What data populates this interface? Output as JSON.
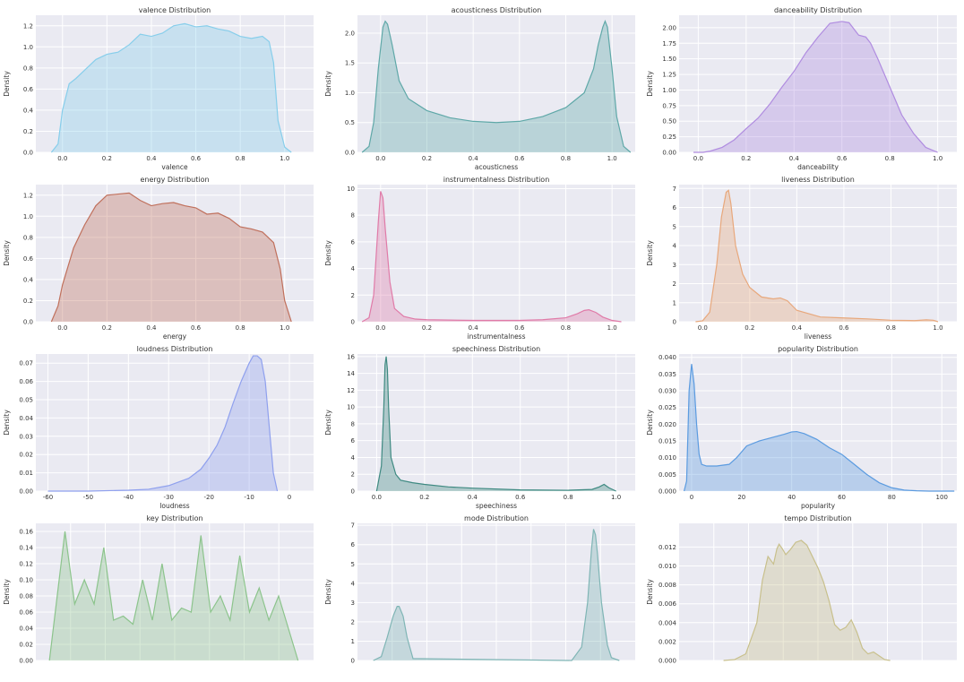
{
  "chart_data": [
    {
      "type": "area",
      "title": "valence Distribution",
      "xlabel": "valence",
      "ylabel": "Density",
      "xlim": [
        -0.12,
        1.13
      ],
      "ylim": [
        0,
        1.3
      ],
      "xticks": [
        0.0,
        0.2,
        0.4,
        0.6,
        0.8,
        1.0
      ],
      "yticks": [
        0.0,
        0.2,
        0.4,
        0.6,
        0.8,
        1.0,
        1.2
      ],
      "color": "#87CEEB",
      "grid": true,
      "x": [
        -0.05,
        -0.02,
        0.0,
        0.03,
        0.06,
        0.1,
        0.15,
        0.2,
        0.25,
        0.3,
        0.35,
        0.4,
        0.45,
        0.5,
        0.55,
        0.6,
        0.65,
        0.7,
        0.75,
        0.8,
        0.85,
        0.9,
        0.93,
        0.95,
        0.97,
        1.0,
        1.03
      ],
      "y": [
        0.0,
        0.08,
        0.4,
        0.65,
        0.7,
        0.78,
        0.88,
        0.93,
        0.95,
        1.02,
        1.12,
        1.1,
        1.13,
        1.2,
        1.22,
        1.19,
        1.2,
        1.17,
        1.15,
        1.1,
        1.08,
        1.1,
        1.05,
        0.85,
        0.3,
        0.05,
        0.0
      ]
    },
    {
      "type": "area",
      "title": "acousticness Distribution",
      "xlabel": "acousticness",
      "ylabel": "Density",
      "xlim": [
        -0.1,
        1.1
      ],
      "ylim": [
        0,
        2.3
      ],
      "xticks": [
        0.0,
        0.2,
        0.4,
        0.6,
        0.8,
        1.0
      ],
      "yticks": [
        0.0,
        0.5,
        1.0,
        1.5,
        2.0
      ],
      "color": "#5FA8A8",
      "grid": true,
      "x": [
        -0.08,
        -0.05,
        -0.03,
        -0.01,
        0.01,
        0.02,
        0.03,
        0.05,
        0.08,
        0.12,
        0.2,
        0.3,
        0.4,
        0.5,
        0.6,
        0.7,
        0.8,
        0.88,
        0.92,
        0.94,
        0.96,
        0.97,
        0.98,
        1.0,
        1.02,
        1.05,
        1.08
      ],
      "y": [
        0.0,
        0.1,
        0.5,
        1.4,
        2.1,
        2.2,
        2.15,
        1.8,
        1.2,
        0.9,
        0.7,
        0.58,
        0.52,
        0.5,
        0.52,
        0.6,
        0.75,
        1.0,
        1.4,
        1.8,
        2.1,
        2.2,
        2.1,
        1.4,
        0.6,
        0.1,
        0.0
      ]
    },
    {
      "type": "area",
      "title": "danceability Distribution",
      "xlabel": "danceability",
      "ylabel": "Density",
      "xlim": [
        -0.08,
        1.08
      ],
      "ylim": [
        0,
        2.2
      ],
      "xticks": [
        0.0,
        0.2,
        0.4,
        0.6,
        0.8,
        1.0
      ],
      "yticks": [
        0.0,
        0.25,
        0.5,
        0.75,
        1.0,
        1.25,
        1.5,
        1.75,
        2.0
      ],
      "color": "#B08CE0",
      "grid": true,
      "x": [
        -0.02,
        0.02,
        0.05,
        0.1,
        0.15,
        0.2,
        0.25,
        0.3,
        0.35,
        0.4,
        0.45,
        0.5,
        0.55,
        0.6,
        0.63,
        0.67,
        0.7,
        0.72,
        0.75,
        0.8,
        0.85,
        0.9,
        0.95,
        1.0
      ],
      "y": [
        0.0,
        0.0,
        0.02,
        0.08,
        0.2,
        0.38,
        0.55,
        0.78,
        1.05,
        1.3,
        1.6,
        1.85,
        2.07,
        2.1,
        2.08,
        1.88,
        1.85,
        1.75,
        1.5,
        1.05,
        0.6,
        0.3,
        0.08,
        0.0
      ]
    },
    {
      "type": "area",
      "title": "energy Distribution",
      "xlabel": "energy",
      "ylabel": "Density",
      "xlim": [
        -0.12,
        1.13
      ],
      "ylim": [
        0,
        1.3
      ],
      "xticks": [
        0.0,
        0.2,
        0.4,
        0.6,
        0.8,
        1.0
      ],
      "yticks": [
        0.0,
        0.2,
        0.4,
        0.6,
        0.8,
        1.0,
        1.2
      ],
      "color": "#C0705C",
      "grid": true,
      "x": [
        -0.05,
        -0.02,
        0.0,
        0.05,
        0.1,
        0.15,
        0.2,
        0.25,
        0.3,
        0.35,
        0.4,
        0.45,
        0.5,
        0.55,
        0.6,
        0.65,
        0.7,
        0.75,
        0.8,
        0.85,
        0.9,
        0.95,
        0.98,
        1.0,
        1.03
      ],
      "y": [
        0.0,
        0.15,
        0.35,
        0.7,
        0.92,
        1.1,
        1.2,
        1.21,
        1.22,
        1.15,
        1.1,
        1.12,
        1.13,
        1.1,
        1.08,
        1.02,
        1.03,
        0.98,
        0.9,
        0.88,
        0.85,
        0.75,
        0.5,
        0.2,
        0.0
      ]
    },
    {
      "type": "area",
      "title": "instrumentalness Distribution",
      "xlabel": "instrumentalness",
      "ylabel": "Density",
      "xlim": [
        -0.1,
        1.1
      ],
      "ylim": [
        0,
        10.3
      ],
      "xticks": [
        0.0,
        0.2,
        0.4,
        0.6,
        0.8,
        1.0
      ],
      "yticks": [
        0,
        2,
        4,
        6,
        8,
        10
      ],
      "color": "#E07BA8",
      "grid": true,
      "x": [
        -0.08,
        -0.05,
        -0.03,
        -0.01,
        0.0,
        0.01,
        0.02,
        0.04,
        0.06,
        0.1,
        0.15,
        0.2,
        0.4,
        0.6,
        0.7,
        0.8,
        0.85,
        0.88,
        0.9,
        0.93,
        0.96,
        1.0,
        1.04
      ],
      "y": [
        0.0,
        0.3,
        2.0,
        7.5,
        9.8,
        9.3,
        7.0,
        3.0,
        1.0,
        0.4,
        0.2,
        0.15,
        0.1,
        0.1,
        0.15,
        0.3,
        0.6,
        0.85,
        0.9,
        0.7,
        0.35,
        0.1,
        0.0
      ]
    },
    {
      "type": "area",
      "title": "liveness Distribution",
      "xlabel": "liveness",
      "ylabel": "Density",
      "xlim": [
        -0.1,
        1.08
      ],
      "ylim": [
        0,
        7.2
      ],
      "xticks": [
        0.0,
        0.2,
        0.4,
        0.6,
        0.8,
        1.0
      ],
      "yticks": [
        0,
        1,
        2,
        3,
        4,
        5,
        6,
        7
      ],
      "color": "#E8A87C",
      "grid": true,
      "x": [
        -0.03,
        0.0,
        0.03,
        0.06,
        0.08,
        0.1,
        0.11,
        0.12,
        0.14,
        0.17,
        0.2,
        0.25,
        0.3,
        0.33,
        0.36,
        0.4,
        0.5,
        0.6,
        0.7,
        0.8,
        0.9,
        0.95,
        0.98,
        1.0
      ],
      "y": [
        0.0,
        0.05,
        0.5,
        3.0,
        5.5,
        6.8,
        6.9,
        6.2,
        4.0,
        2.5,
        1.8,
        1.3,
        1.2,
        1.25,
        1.1,
        0.6,
        0.25,
        0.2,
        0.15,
        0.08,
        0.06,
        0.1,
        0.08,
        0.0
      ]
    },
    {
      "type": "area",
      "title": "loudness Distribution",
      "xlabel": "loudness",
      "ylabel": "Density",
      "xlim": [
        -63,
        6
      ],
      "ylim": [
        0,
        0.075
      ],
      "xticks": [
        -60,
        -50,
        -40,
        -30,
        -20,
        -10,
        0
      ],
      "yticks": [
        0.0,
        0.01,
        0.02,
        0.03,
        0.04,
        0.05,
        0.06,
        0.07
      ],
      "color": "#8FA0EE",
      "grid": true,
      "x": [
        -60,
        -50,
        -40,
        -35,
        -30,
        -25,
        -22,
        -20,
        -18,
        -16,
        -14,
        -12,
        -11,
        -10,
        -9,
        -8,
        -7,
        -6,
        -5,
        -4,
        -3
      ],
      "y": [
        0.0,
        0.0,
        0.0005,
        0.001,
        0.003,
        0.007,
        0.012,
        0.018,
        0.025,
        0.035,
        0.048,
        0.06,
        0.065,
        0.07,
        0.074,
        0.074,
        0.072,
        0.06,
        0.035,
        0.01,
        0.0
      ]
    },
    {
      "type": "area",
      "title": "speechiness Distribution",
      "xlabel": "speechiness",
      "ylabel": "Density",
      "xlim": [
        -0.08,
        1.08
      ],
      "ylim": [
        0,
        16.3
      ],
      "xticks": [
        0.0,
        0.2,
        0.4,
        0.6,
        0.8,
        1.0
      ],
      "yticks": [
        0,
        2,
        4,
        6,
        8,
        10,
        12,
        14,
        16
      ],
      "color": "#3F8A82",
      "grid": true,
      "x": [
        0.0,
        0.02,
        0.03,
        0.035,
        0.04,
        0.045,
        0.05,
        0.06,
        0.08,
        0.1,
        0.15,
        0.2,
        0.3,
        0.4,
        0.6,
        0.8,
        0.9,
        0.93,
        0.95,
        0.97,
        1.0
      ],
      "y": [
        0.0,
        3.0,
        10.0,
        15.0,
        16.0,
        14.5,
        10.0,
        4.0,
        2.0,
        1.3,
        1.0,
        0.8,
        0.5,
        0.35,
        0.15,
        0.1,
        0.2,
        0.5,
        0.8,
        0.4,
        0.0
      ]
    },
    {
      "type": "area",
      "title": "popularity Distribution",
      "xlabel": "popularity",
      "ylabel": "Density",
      "xlim": [
        -5,
        106
      ],
      "ylim": [
        0,
        0.041
      ],
      "xticks": [
        0,
        20,
        40,
        60,
        80,
        100
      ],
      "yticks": [
        0.0,
        0.005,
        0.01,
        0.015,
        0.02,
        0.025,
        0.03,
        0.035,
        0.04
      ],
      "color": "#5B9BE0",
      "grid": true,
      "x": [
        -3,
        -2,
        -1,
        0,
        1,
        2,
        3,
        4,
        6,
        10,
        15,
        18,
        22,
        27,
        32,
        37,
        40,
        42,
        45,
        50,
        55,
        60,
        65,
        70,
        75,
        80,
        85,
        90,
        95,
        100,
        105
      ],
      "y": [
        0.0,
        0.003,
        0.03,
        0.038,
        0.032,
        0.02,
        0.011,
        0.008,
        0.0075,
        0.0075,
        0.008,
        0.01,
        0.0135,
        0.015,
        0.016,
        0.017,
        0.0177,
        0.0178,
        0.0172,
        0.0155,
        0.013,
        0.011,
        0.008,
        0.005,
        0.0025,
        0.001,
        0.0003,
        0.0001,
        0.0,
        0.0,
        0.0
      ]
    },
    {
      "type": "area",
      "title": "key Distribution",
      "xlabel": "",
      "ylabel": "Density",
      "xlim": [
        -1.5,
        12.8
      ],
      "ylim": [
        0,
        0.17
      ],
      "xticks": [],
      "yticks": [
        0.0,
        0.02,
        0.04,
        0.06,
        0.08,
        0.1,
        0.12,
        0.14,
        0.16
      ],
      "color": "#8CC48C",
      "grid": true,
      "x": [
        -0.8,
        -0.5,
        0.0,
        0.5,
        1.0,
        1.5,
        2.0,
        2.5,
        3.0,
        3.5,
        4.0,
        4.5,
        5.0,
        5.5,
        6.0,
        6.5,
        7.0,
        7.5,
        8.0,
        8.5,
        9.0,
        9.5,
        10.0,
        10.5,
        11.0,
        11.5,
        12.0
      ],
      "y": [
        0.0,
        0.06,
        0.16,
        0.07,
        0.1,
        0.07,
        0.14,
        0.05,
        0.055,
        0.045,
        0.1,
        0.05,
        0.12,
        0.05,
        0.065,
        0.06,
        0.155,
        0.06,
        0.08,
        0.05,
        0.13,
        0.06,
        0.09,
        0.05,
        0.08,
        0.04,
        0.0
      ]
    },
    {
      "type": "area",
      "title": "mode Distribution",
      "xlabel": "",
      "ylabel": "Density",
      "xlim": [
        -0.18,
        1.22
      ],
      "ylim": [
        0,
        7.1
      ],
      "xticks": [],
      "yticks": [
        0,
        1,
        2,
        3,
        4,
        5,
        6,
        7
      ],
      "color": "#7FB5B5",
      "grid": true,
      "x": [
        -0.1,
        -0.06,
        -0.03,
        0.0,
        0.02,
        0.03,
        0.05,
        0.07,
        0.1,
        0.9,
        0.95,
        0.98,
        1.0,
        1.01,
        1.02,
        1.03,
        1.05,
        1.08,
        1.1,
        1.14
      ],
      "y": [
        0.0,
        0.2,
        1.2,
        2.3,
        2.8,
        2.8,
        2.3,
        1.2,
        0.1,
        0.0,
        0.7,
        3.0,
        5.8,
        6.8,
        6.5,
        5.5,
        3.0,
        0.8,
        0.15,
        0.0
      ]
    },
    {
      "type": "area",
      "title": "tempo Distribution",
      "xlabel": "",
      "ylabel": "Density",
      "xlim": [
        0,
        250
      ],
      "ylim": [
        0,
        0.0145
      ],
      "xticks": [],
      "yticks": [
        0.0,
        0.002,
        0.004,
        0.006,
        0.008,
        0.01,
        0.012
      ],
      "color": "#C8C08C",
      "grid": true,
      "x": [
        40,
        50,
        60,
        70,
        75,
        80,
        85,
        88,
        90,
        93,
        96,
        100,
        105,
        110,
        115,
        120,
        125,
        130,
        135,
        140,
        145,
        150,
        155,
        160,
        165,
        170,
        175,
        180,
        185,
        190
      ],
      "y": [
        0.0,
        0.0001,
        0.0007,
        0.004,
        0.0085,
        0.011,
        0.0102,
        0.0118,
        0.0123,
        0.0118,
        0.0112,
        0.0117,
        0.0125,
        0.0127,
        0.0122,
        0.011,
        0.0098,
        0.0083,
        0.0063,
        0.0038,
        0.0032,
        0.0035,
        0.0043,
        0.003,
        0.0013,
        0.0007,
        0.0009,
        0.0005,
        0.0001,
        0.0
      ]
    }
  ]
}
